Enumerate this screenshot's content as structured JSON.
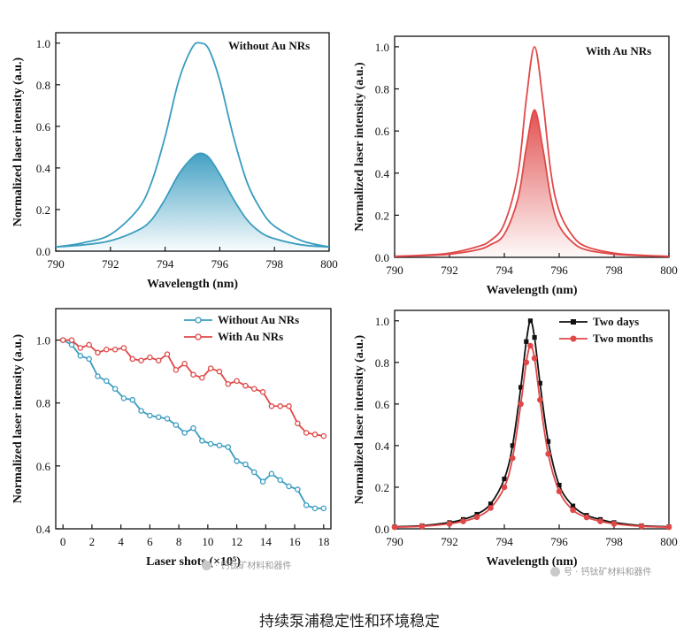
{
  "colors": {
    "blue": "#3a9cc0",
    "red": "#e04848",
    "black": "#111111"
  },
  "caption": "持续泵浦稳定性和环境稳定",
  "watermarks": {
    "left": "· 钙钛矿材料和器件",
    "right": "号 · 钙钛矿材料和器件"
  },
  "chart_data": [
    {
      "type": "line",
      "panel": "top-left",
      "legend_box": "Without Au NRs",
      "xlabel": "Wavelength (nm)",
      "ylabel": "Normalized laser intensity (a.u.)",
      "xlim": [
        790,
        800
      ],
      "ylim": [
        0,
        1.05
      ],
      "xticks": [
        790,
        792,
        794,
        796,
        798,
        800
      ],
      "yticks": [
        0.0,
        0.2,
        0.4,
        0.6,
        0.8,
        1.0
      ],
      "xtick_labels": [
        "790",
        "792",
        "794",
        "796",
        "798",
        "800"
      ],
      "ytick_labels": [
        "0.0",
        "0.2",
        "0.4",
        "0.6",
        "0.8",
        "1.0"
      ],
      "color": "#3a9cc0",
      "fill": true,
      "series": [
        {
          "x": [
            790,
            791,
            792,
            793,
            793.5,
            794,
            794.5,
            795,
            795.3,
            795.6,
            796,
            796.5,
            797,
            797.5,
            798,
            799,
            800
          ],
          "values": [
            0.02,
            0.04,
            0.08,
            0.2,
            0.33,
            0.55,
            0.82,
            0.98,
            1.0,
            0.97,
            0.82,
            0.55,
            0.33,
            0.2,
            0.12,
            0.05,
            0.02
          ]
        },
        {
          "x": [
            790,
            791,
            792,
            793,
            793.5,
            794,
            794.5,
            795,
            795.3,
            795.6,
            796,
            796.5,
            797,
            797.5,
            798,
            799,
            800
          ],
          "values": [
            0.02,
            0.03,
            0.05,
            0.1,
            0.15,
            0.25,
            0.37,
            0.45,
            0.47,
            0.45,
            0.37,
            0.25,
            0.15,
            0.09,
            0.06,
            0.03,
            0.02
          ]
        }
      ]
    },
    {
      "type": "line",
      "panel": "top-right",
      "legend_box": "With Au NRs",
      "xlabel": "Wavelength (nm)",
      "ylabel": "Normalized laser intensity (a.u.)",
      "xlim": [
        790,
        800
      ],
      "ylim": [
        0,
        1.05
      ],
      "xticks": [
        790,
        792,
        794,
        796,
        798,
        800
      ],
      "yticks": [
        0.0,
        0.2,
        0.4,
        0.6,
        0.8,
        1.0
      ],
      "xtick_labels": [
        "790",
        "792",
        "794",
        "796",
        "798",
        "800"
      ],
      "ytick_labels": [
        "0.0",
        "0.2",
        "0.4",
        "0.6",
        "0.8",
        "1.0"
      ],
      "color": "#e04848",
      "fill": true,
      "series": [
        {
          "x": [
            790,
            791,
            792,
            793,
            793.5,
            794,
            794.5,
            794.8,
            795.1,
            795.4,
            795.7,
            796,
            796.5,
            797,
            798,
            799,
            800
          ],
          "values": [
            0.005,
            0.01,
            0.02,
            0.05,
            0.08,
            0.16,
            0.4,
            0.75,
            1.0,
            0.75,
            0.4,
            0.22,
            0.1,
            0.05,
            0.02,
            0.01,
            0.005
          ]
        },
        {
          "x": [
            790,
            791,
            792,
            793,
            793.5,
            794,
            794.5,
            794.8,
            795.1,
            795.4,
            795.7,
            796,
            796.5,
            797,
            798,
            799,
            800
          ],
          "values": [
            0.004,
            0.008,
            0.015,
            0.035,
            0.06,
            0.11,
            0.28,
            0.52,
            0.7,
            0.52,
            0.28,
            0.15,
            0.07,
            0.035,
            0.015,
            0.008,
            0.004
          ]
        }
      ]
    },
    {
      "type": "line",
      "panel": "bottom-left",
      "xlabel": "Laser shots (×10⁵)",
      "ylabel": "Normalized laser intensity (a.u.)",
      "xlim": [
        -0.5,
        18.5
      ],
      "ylim": [
        0.4,
        1.1
      ],
      "xticks": [
        0,
        2,
        4,
        6,
        8,
        10,
        12,
        14,
        16,
        18
      ],
      "yticks": [
        0.4,
        0.6,
        0.8,
        1.0
      ],
      "xtick_labels": [
        "0",
        "2",
        "4",
        "6",
        "8",
        "10",
        "12",
        "14",
        "16",
        "18"
      ],
      "ytick_labels": [
        "0.4",
        "0.6",
        "0.8",
        "1.0"
      ],
      "legend_position": "top-right",
      "series": [
        {
          "name": "Without Au NRs",
          "color": "#3a9cc0",
          "x": [
            0,
            0.6,
            1.2,
            1.8,
            2.4,
            3.0,
            3.6,
            4.2,
            4.8,
            5.4,
            6.0,
            6.6,
            7.2,
            7.8,
            8.4,
            9.0,
            9.6,
            10.2,
            10.8,
            11.4,
            12.0,
            12.6,
            13.2,
            13.8,
            14.4,
            15.0,
            15.6,
            16.2,
            16.8,
            17.4,
            18.0
          ],
          "values": [
            1.0,
            0.985,
            0.95,
            0.94,
            0.885,
            0.87,
            0.845,
            0.815,
            0.81,
            0.775,
            0.76,
            0.755,
            0.75,
            0.73,
            0.705,
            0.72,
            0.68,
            0.67,
            0.665,
            0.66,
            0.615,
            0.605,
            0.58,
            0.55,
            0.575,
            0.555,
            0.535,
            0.525,
            0.475,
            0.465,
            0.465
          ]
        },
        {
          "name": "With Au NRs",
          "color": "#e04848",
          "x": [
            0,
            0.6,
            1.2,
            1.8,
            2.4,
            3.0,
            3.6,
            4.2,
            4.8,
            5.4,
            6.0,
            6.6,
            7.2,
            7.8,
            8.4,
            9.0,
            9.6,
            10.2,
            10.8,
            11.4,
            12.0,
            12.6,
            13.2,
            13.8,
            14.4,
            15.0,
            15.6,
            16.2,
            16.8,
            17.4,
            18.0
          ],
          "values": [
            1.0,
            1.0,
            0.975,
            0.985,
            0.96,
            0.97,
            0.97,
            0.975,
            0.94,
            0.935,
            0.945,
            0.935,
            0.955,
            0.905,
            0.925,
            0.89,
            0.88,
            0.91,
            0.9,
            0.86,
            0.87,
            0.855,
            0.845,
            0.835,
            0.79,
            0.79,
            0.79,
            0.735,
            0.705,
            0.7,
            0.695
          ]
        }
      ]
    },
    {
      "type": "line",
      "panel": "bottom-right",
      "xlabel": "Wavelength (nm)",
      "ylabel": "Normalized laser intensity (a.u.)",
      "xlim": [
        790,
        800
      ],
      "ylim": [
        0,
        1.05
      ],
      "xticks": [
        790,
        792,
        794,
        796,
        798,
        800
      ],
      "yticks": [
        0.0,
        0.2,
        0.4,
        0.6,
        0.8,
        1.0
      ],
      "xtick_labels": [
        "790",
        "792",
        "794",
        "796",
        "798",
        "800"
      ],
      "ytick_labels": [
        "0.0",
        "0.2",
        "0.4",
        "0.6",
        "0.8",
        "1.0"
      ],
      "legend_position": "top-right",
      "series": [
        {
          "name": "Two days",
          "color": "#111111",
          "marker": "square",
          "x": [
            790,
            791,
            792,
            792.5,
            793,
            793.5,
            794,
            794.3,
            794.6,
            794.8,
            794.95,
            795.1,
            795.3,
            795.6,
            796,
            796.5,
            797,
            797.5,
            798,
            799,
            800
          ],
          "values": [
            0.01,
            0.015,
            0.03,
            0.045,
            0.07,
            0.12,
            0.24,
            0.4,
            0.68,
            0.9,
            1.0,
            0.92,
            0.7,
            0.42,
            0.21,
            0.11,
            0.065,
            0.045,
            0.03,
            0.015,
            0.01
          ]
        },
        {
          "name": "Two months",
          "color": "#e04848",
          "marker": "circle",
          "x": [
            790,
            791,
            792,
            792.5,
            793,
            793.5,
            794,
            794.3,
            794.6,
            794.8,
            794.95,
            795.1,
            795.3,
            795.6,
            796,
            796.5,
            797,
            797.5,
            798,
            799,
            800
          ],
          "values": [
            0.008,
            0.012,
            0.024,
            0.036,
            0.056,
            0.1,
            0.2,
            0.34,
            0.6,
            0.8,
            0.88,
            0.82,
            0.62,
            0.36,
            0.18,
            0.09,
            0.055,
            0.036,
            0.024,
            0.012,
            0.008
          ]
        }
      ]
    }
  ]
}
